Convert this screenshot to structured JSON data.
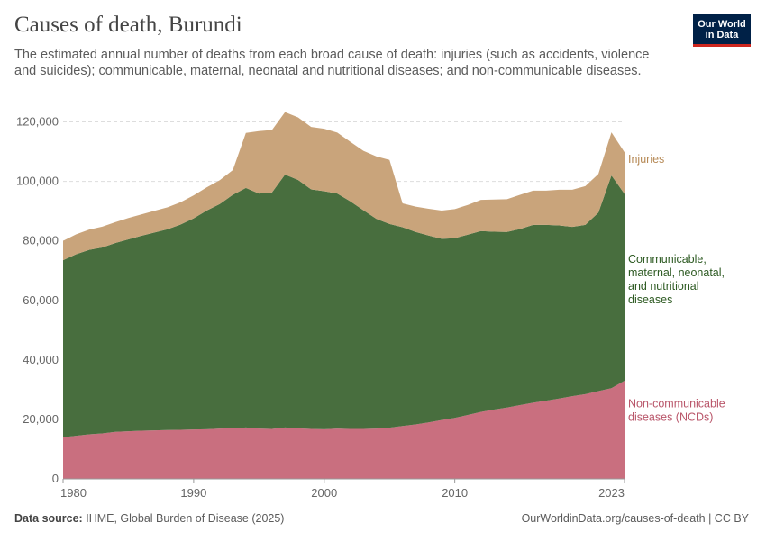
{
  "header": {
    "title": "Causes of death, Burundi",
    "subtitle": "The estimated annual number of deaths from each broad cause of death: injuries (such as accidents, violence and suicides); communicable, maternal, neonatal and nutritional diseases; and non-communicable diseases."
  },
  "logo": {
    "line1": "Our World",
    "line2": "in Data"
  },
  "footer": {
    "source_label": "Data source:",
    "source_text": "IHME, Global Burden of Disease (2025)",
    "url": "OurWorldinData.org/causes-of-death | CC BY"
  },
  "chart_data": {
    "type": "area",
    "stacked": true,
    "x": [
      1980,
      1981,
      1982,
      1983,
      1984,
      1985,
      1986,
      1987,
      1988,
      1989,
      1990,
      1991,
      1992,
      1993,
      1994,
      1995,
      1996,
      1997,
      1998,
      1999,
      2000,
      2001,
      2002,
      2003,
      2004,
      2005,
      2006,
      2007,
      2008,
      2009,
      2010,
      2011,
      2012,
      2013,
      2014,
      2015,
      2016,
      2017,
      2018,
      2019,
      2020,
      2021,
      2022,
      2023
    ],
    "x_ticks": [
      1980,
      1990,
      2000,
      2010,
      2023
    ],
    "x_tick_labels": [
      "1980",
      "1990",
      "2000",
      "2010",
      "2023"
    ],
    "ylim": [
      0,
      125000
    ],
    "y_ticks": [
      0,
      20000,
      40000,
      60000,
      80000,
      100000,
      120000
    ],
    "y_tick_labels": [
      "0",
      "20,000",
      "40,000",
      "60,000",
      "80,000",
      "100,000",
      "120,000"
    ],
    "series": [
      {
        "name": "Non-communicable diseases (NCDs)",
        "label_lines": [
          "Non-communicable",
          "diseases (NCDs)"
        ],
        "color": "#c96f7f",
        "label_color": "#b9566a",
        "values": [
          14000,
          14500,
          15000,
          15300,
          15800,
          16000,
          16200,
          16300,
          16400,
          16500,
          16600,
          16700,
          16900,
          17000,
          17300,
          16900,
          16800,
          17300,
          17000,
          16800,
          16700,
          16900,
          16800,
          16800,
          16900,
          17200,
          17800,
          18300,
          19000,
          19800,
          20500,
          21500,
          22500,
          23300,
          24000,
          24800,
          25600,
          26300,
          27000,
          27800,
          28500,
          29500,
          30500,
          33000
        ],
        "label_at": 23000
      },
      {
        "name": "Communicable, maternal, neonatal, and nutritional diseases",
        "label_lines": [
          "Communicable,",
          "maternal, neonatal,",
          "and nutritional",
          "diseases"
        ],
        "color": "#486e3e",
        "label_color": "#2d5a22",
        "values": [
          59500,
          61000,
          62000,
          62500,
          63500,
          64500,
          65500,
          66500,
          67500,
          69000,
          71000,
          73500,
          75500,
          78500,
          80500,
          79000,
          79500,
          85000,
          83500,
          80500,
          80000,
          79000,
          76500,
          73500,
          70500,
          68500,
          66800,
          64700,
          62800,
          60900,
          60400,
          60600,
          60800,
          59800,
          59000,
          59200,
          59800,
          59100,
          58200,
          56900,
          56900,
          60000,
          71500,
          62800
        ],
        "label_at": 67000
      },
      {
        "name": "Injuries",
        "label_lines": [
          "Injuries"
        ],
        "color": "#c9a47b",
        "label_color": "#b68955",
        "values": [
          6500,
          6700,
          6800,
          7000,
          7000,
          7200,
          7200,
          7300,
          7400,
          7500,
          7700,
          7800,
          8000,
          8300,
          18500,
          21000,
          21000,
          21000,
          21000,
          21000,
          21000,
          20500,
          20000,
          20000,
          21000,
          21500,
          8000,
          8500,
          9000,
          9500,
          9800,
          10000,
          10500,
          10800,
          11000,
          11500,
          11500,
          11500,
          12000,
          12500,
          13000,
          13000,
          14500,
          14000
        ],
        "label_at": 107500
      }
    ]
  }
}
